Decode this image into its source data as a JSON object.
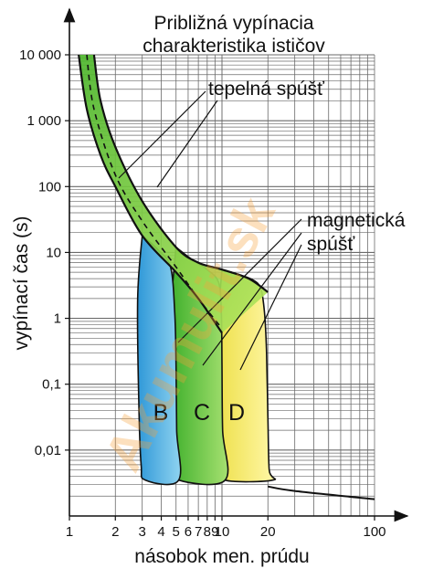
{
  "chart_data": {
    "type": "area",
    "title": "Približná vypínacia charakteristika ističov",
    "xlabel": "násobok men. prúdu",
    "ylabel": "vypínací čas (s)",
    "x_scale": "log",
    "y_scale": "log",
    "xlim": [
      1,
      100
    ],
    "ylim": [
      0.001,
      10000
    ],
    "grid": true,
    "x_ticks": [
      {
        "value": 1,
        "label": "1"
      },
      {
        "value": 2,
        "label": "2"
      },
      {
        "value": 3,
        "label": "3"
      },
      {
        "value": 4,
        "label": "4"
      },
      {
        "value": 5,
        "label": "5"
      },
      {
        "value": 6,
        "label": "6"
      },
      {
        "value": 7,
        "label": "7"
      },
      {
        "value": 8,
        "label": "8"
      },
      {
        "value": 9,
        "label": "9"
      },
      {
        "value": 10,
        "label": "10"
      },
      {
        "value": 20,
        "label": "20"
      },
      {
        "value": 100,
        "label": "100"
      }
    ],
    "y_ticks": [
      {
        "value": 10000,
        "label": "10 000"
      },
      {
        "value": 1000,
        "label": "1 000"
      },
      {
        "value": 100,
        "label": "100"
      },
      {
        "value": 10,
        "label": "10"
      },
      {
        "value": 1,
        "label": "1"
      },
      {
        "value": 0.1,
        "label": "0,1"
      },
      {
        "value": 0.01,
        "label": "0,01"
      }
    ],
    "annotations": {
      "thermal": "tepelná spúšť",
      "magnetic_1": "magnetická",
      "magnetic_2": "spúšť"
    },
    "series": [
      {
        "name": "B",
        "color": "#3aa8e0",
        "magnetic_trip_x": [
          3,
          5
        ]
      },
      {
        "name": "C",
        "color": "#5cc83a",
        "magnetic_trip_x": [
          5,
          10
        ]
      },
      {
        "name": "D",
        "color": "#f5ec5a",
        "magnetic_trip_x": [
          10,
          20
        ]
      }
    ],
    "thermal_band": {
      "color": "#8dd64a",
      "lower_curve": [
        [
          1.15,
          10000
        ],
        [
          1.3,
          1500
        ],
        [
          1.6,
          300
        ],
        [
          2,
          100
        ],
        [
          3,
          18
        ],
        [
          5,
          5
        ],
        [
          7,
          2
        ],
        [
          10,
          0.6
        ]
      ],
      "upper_curve": [
        [
          1.45,
          10000
        ],
        [
          1.6,
          2000
        ],
        [
          2,
          400
        ],
        [
          3,
          60
        ],
        [
          5,
          12
        ],
        [
          7,
          7
        ],
        [
          10,
          5.5
        ],
        [
          15,
          4
        ],
        [
          20,
          2.5
        ]
      ],
      "dashed_curve": [
        [
          1.3,
          10000
        ],
        [
          1.45,
          1500
        ],
        [
          2,
          150
        ],
        [
          3,
          30
        ],
        [
          5,
          6
        ],
        [
          7,
          2
        ],
        [
          10,
          0.7
        ]
      ]
    },
    "tail": [
      [
        20,
        0.0028
      ],
      [
        30,
        0.0024
      ],
      [
        100,
        0.0018
      ]
    ]
  },
  "watermark": "Akumulit.sk"
}
